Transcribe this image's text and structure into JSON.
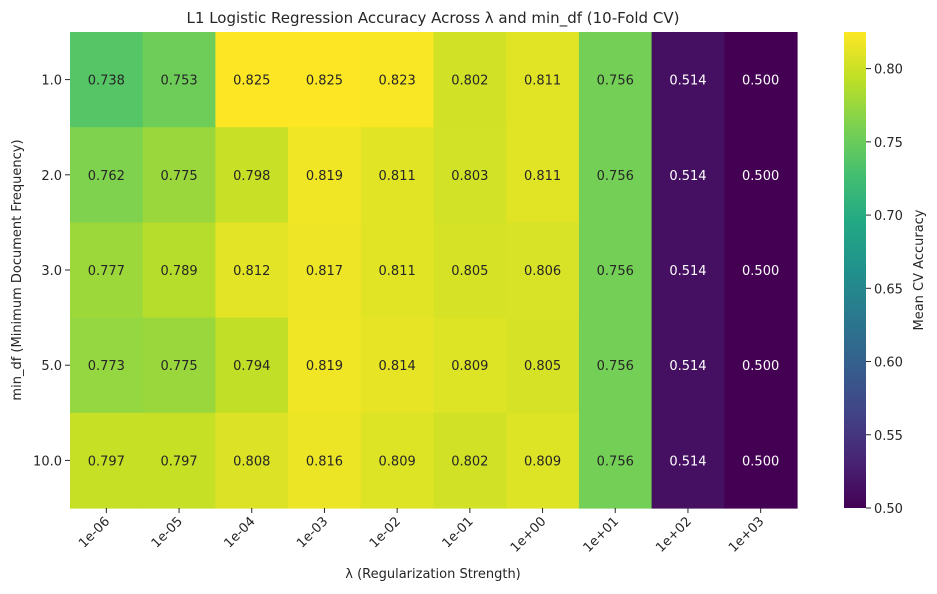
{
  "chart_data": {
    "type": "heatmap",
    "title": "L1 Logistic Regression Accuracy Across λ and min_df (10-Fold CV)",
    "xlabel": "λ (Regularization Strength)",
    "ylabel": "min_df (Minimum Document Frequency)",
    "x_categories": [
      "1e-06",
      "1e-05",
      "1e-04",
      "1e-03",
      "1e-02",
      "1e-01",
      "1e+00",
      "1e+01",
      "1e+02",
      "1e+03"
    ],
    "y_categories": [
      "1.0",
      "2.0",
      "3.0",
      "5.0",
      "10.0"
    ],
    "values": [
      [
        0.738,
        0.753,
        0.825,
        0.825,
        0.823,
        0.802,
        0.811,
        0.756,
        0.514,
        0.5
      ],
      [
        0.762,
        0.775,
        0.798,
        0.819,
        0.811,
        0.803,
        0.811,
        0.756,
        0.514,
        0.5
      ],
      [
        0.777,
        0.789,
        0.812,
        0.817,
        0.811,
        0.805,
        0.806,
        0.756,
        0.514,
        0.5
      ],
      [
        0.773,
        0.775,
        0.794,
        0.819,
        0.814,
        0.809,
        0.805,
        0.756,
        0.514,
        0.5
      ],
      [
        0.797,
        0.797,
        0.808,
        0.816,
        0.809,
        0.802,
        0.809,
        0.756,
        0.514,
        0.5
      ]
    ],
    "colorbar": {
      "label": "Mean CV Accuracy",
      "range": [
        0.5,
        0.825
      ],
      "ticks": [
        0.5,
        0.55,
        0.6,
        0.65,
        0.7,
        0.75,
        0.8
      ],
      "tick_labels": [
        "0.50",
        "0.55",
        "0.60",
        "0.65",
        "0.70",
        "0.75",
        "0.80"
      ],
      "colormap": "viridis"
    }
  }
}
